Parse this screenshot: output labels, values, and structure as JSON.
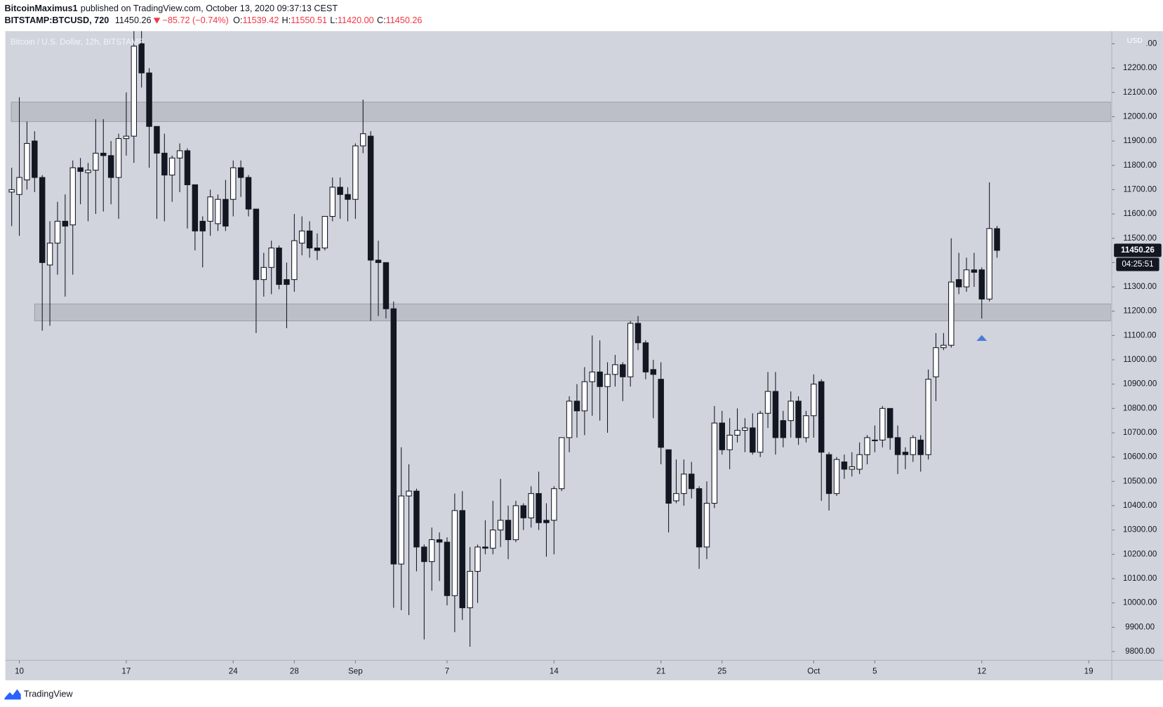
{
  "chart_data": {
    "type": "candlestick",
    "title": "Bitcoin / U.S. Dollar, 12h, BITSTAMP",
    "header": {
      "author": "BitcoinMaximus1",
      "published": "published on TradingView.com, October 13, 2020 09:37:13 CEST",
      "symbol": "BITSTAMP:BTCUSD, 720",
      "last": "11450.26",
      "change": "−85.72 (−0.74%)",
      "ohlc": [
        {
          "label": "O:",
          "value": "11539.42"
        },
        {
          "label": "H:",
          "value": "11550.51"
        },
        {
          "label": "L:",
          "value": "11420.00"
        },
        {
          "label": "C:",
          "value": "11450.26"
        }
      ]
    },
    "y_unit": "USD",
    "x": [
      9.5,
      10,
      10.5,
      11,
      11.5,
      12,
      12.5,
      13,
      13.5,
      14,
      14.5,
      15,
      15.5,
      16,
      16.5,
      17,
      17.5,
      18,
      18.5,
      19,
      19.5,
      20,
      20.5,
      21,
      21.5,
      22,
      22.5,
      23,
      23.5,
      24,
      24.5,
      25,
      25.5,
      26,
      26.5,
      27,
      27.5,
      28,
      28.5,
      29,
      29.5,
      30,
      30.5,
      31,
      31.5,
      32,
      32.5,
      33,
      33.5,
      34,
      34.5,
      35,
      35.5,
      36,
      36.5,
      37,
      37.5,
      38,
      38.5,
      39,
      39.5,
      40,
      40.5,
      41,
      41.5,
      42,
      42.5,
      43,
      43.5,
      44,
      44.5,
      45,
      45.5,
      46,
      46.5,
      47,
      47.5,
      48,
      48.5,
      49,
      49.5,
      50,
      50.5,
      51,
      51.5,
      52,
      52.5,
      53,
      53.5,
      54,
      54.5,
      55,
      55.5,
      56,
      56.5,
      57,
      57.5,
      58,
      58.5,
      59,
      59.5,
      60,
      60.5,
      61,
      61.5,
      62,
      62.5,
      63,
      63.5,
      64,
      64.5,
      65,
      65.5,
      66,
      66.5,
      67,
      67.5,
      68,
      68.5,
      69,
      69.5,
      70,
      70.5,
      71,
      71.5,
      72,
      72.5,
      73,
      73.5,
      74
    ],
    "open": [
      11690,
      11680,
      11740,
      11900,
      11750,
      11390,
      11480,
      11570,
      11555,
      11790,
      11770,
      11780,
      11850,
      11840,
      11750,
      11910,
      11920,
      12300,
      12180,
      11960,
      11850,
      11760,
      11830,
      11860,
      11720,
      11570,
      11570,
      11560,
      11660,
      11660,
      11790,
      11750,
      11620,
      11330,
      11380,
      11460,
      11330,
      11330,
      11480,
      11530,
      11460,
      11460,
      11590,
      11710,
      11680,
      11660,
      11880,
      11920,
      11410,
      11400,
      11210,
      10160,
      10440,
      10460,
      10230,
      10170,
      10260,
      10250,
      10030,
      10380,
      9980,
      10130,
      10230,
      10225,
      10300,
      10340,
      10260,
      10400,
      10350,
      10450,
      10340,
      10340,
      10470,
      10680,
      10830,
      10790,
      10910,
      10950,
      10890,
      10940,
      10980,
      10930,
      11150,
      11070,
      10960,
      10920,
      10630,
      10420,
      10450,
      10530,
      10470,
      10230,
      10410,
      10740,
      10630,
      10690,
      10710,
      10720,
      10620,
      10780,
      10870,
      10750,
      10750,
      10830,
      10680,
      10770,
      10910,
      10610,
      10450,
      10580,
      10550,
      10550,
      10610,
      10670,
      10670,
      10800,
      10680,
      10620,
      10610,
      10670,
      10610,
      10930,
      11050,
      11060,
      11330,
      11300,
      11370,
      11370,
      11250,
      11539.42
    ],
    "high": [
      11790,
      12080,
      11980,
      11940,
      11760,
      11570,
      11650,
      11680,
      11820,
      11830,
      11810,
      11990,
      11990,
      11900,
      11930,
      12100,
      12390,
      12400,
      12200,
      11960,
      11930,
      11840,
      11890,
      11870,
      11720,
      11590,
      11700,
      11680,
      11740,
      11820,
      11820,
      11760,
      11620,
      11440,
      11490,
      11470,
      11400,
      11600,
      11590,
      11570,
      11520,
      11590,
      11750,
      11750,
      11710,
      11890,
      12070,
      11940,
      11490,
      11400,
      11240,
      10640,
      10570,
      10470,
      10240,
      10310,
      10290,
      10270,
      10450,
      10460,
      10230,
      10240,
      10340,
      10420,
      10510,
      10400,
      10420,
      10410,
      10480,
      10540,
      10410,
      10480,
      10680,
      10850,
      10900,
      10970,
      11100,
      11080,
      10990,
      11020,
      10990,
      11160,
      11180,
      11080,
      11000,
      10990,
      10630,
      10590,
      10590,
      10580,
      10480,
      10500,
      10810,
      10790,
      10760,
      10800,
      10760,
      10780,
      10790,
      10950,
      10950,
      10790,
      10870,
      10850,
      10790,
      10940,
      10920,
      10620,
      10600,
      10610,
      10620,
      10660,
      10690,
      10730,
      10810,
      10800,
      10730,
      10640,
      10690,
      10690,
      10960,
      11110,
      11110,
      11500,
      11440,
      11420,
      11440,
      11380,
      11730,
      11550.51
    ],
    "low": [
      11550,
      11510,
      11700,
      11690,
      11120,
      11140,
      11350,
      11260,
      11350,
      11640,
      11570,
      11600,
      11610,
      11640,
      11580,
      11840,
      11810,
      12120,
      11790,
      11580,
      11570,
      11650,
      11690,
      11540,
      11450,
      11380,
      11510,
      11530,
      11530,
      11590,
      11670,
      11590,
      11110,
      11260,
      11270,
      11290,
      11130,
      11280,
      11430,
      11420,
      11410,
      11450,
      11570,
      11580,
      11570,
      11580,
      11850,
      11160,
      11180,
      11170,
      9980,
      9970,
      9950,
      10130,
      9850,
      10050,
      10090,
      9990,
      9880,
      9930,
      9820,
      10000,
      10200,
      10200,
      10230,
      10180,
      10250,
      10300,
      10310,
      10300,
      10190,
      10200,
      10460,
      10620,
      10680,
      10690,
      10770,
      10750,
      10700,
      10890,
      10830,
      10890,
      11040,
      10920,
      10760,
      10570,
      10290,
      10410,
      10400,
      10430,
      10140,
      10180,
      10390,
      10610,
      10550,
      10660,
      10620,
      10610,
      10600,
      10720,
      10610,
      10640,
      10680,
      10650,
      10660,
      10680,
      10420,
      10380,
      10440,
      10510,
      10520,
      10530,
      10570,
      10620,
      10640,
      10630,
      10530,
      10550,
      10580,
      10540,
      10590,
      10830,
      11040,
      11050,
      11270,
      11280,
      11300,
      11170,
      11240,
      11420
    ],
    "close": [
      11700,
      11750,
      11890,
      11750,
      11400,
      11480,
      11570,
      11550,
      11790,
      11775,
      11780,
      11850,
      11840,
      11750,
      11910,
      11920,
      12290,
      12180,
      11960,
      11850,
      11760,
      11830,
      11860,
      11720,
      11530,
      11530,
      11670,
      11660,
      11550,
      11790,
      11750,
      11620,
      11330,
      11380,
      11460,
      11310,
      11310,
      11490,
      11530,
      11460,
      11450,
      11590,
      11710,
      11680,
      11660,
      11880,
      11930,
      11410,
      11400,
      11210,
      10160,
      10440,
      10460,
      10230,
      10170,
      10260,
      10250,
      10030,
      10380,
      9980,
      10130,
      10230,
      10225,
      10300,
      10340,
      10260,
      10400,
      10350,
      10450,
      10330,
      10330,
      10470,
      10680,
      10830,
      10790,
      10910,
      10950,
      10890,
      10940,
      10980,
      10930,
      11150,
      11070,
      10950,
      10940,
      10640,
      10410,
      10450,
      10530,
      10470,
      10230,
      10410,
      10740,
      10630,
      10690,
      10710,
      10720,
      10620,
      10780,
      10870,
      10680,
      10680,
      10830,
      10680,
      10770,
      10900,
      10620,
      10450,
      10590,
      10550,
      10560,
      10610,
      10680,
      10670,
      10800,
      10680,
      10610,
      10610,
      10680,
      10610,
      10920,
      11050,
      11060,
      11320,
      11300,
      11370,
      11360,
      11250,
      11540,
      11450.26
    ],
    "up_color": "#ffffff",
    "down_color": "#131722",
    "xlim": [
      9.08,
      81.46
    ],
    "xticks": [
      10,
      17,
      24,
      28,
      {
        "value": 32,
        "label": "Sep"
      },
      {
        "value": 38,
        "label": "7"
      },
      {
        "value": 45,
        "label": "14"
      },
      {
        "value": 52,
        "label": "21"
      },
      {
        "value": 56,
        "label": "25"
      },
      {
        "value": 62,
        "label": "Oct"
      },
      {
        "value": 66,
        "label": "5"
      },
      {
        "value": 73,
        "label": "12"
      },
      {
        "value": 80,
        "label": "19"
      }
    ],
    "ylim": [
      9767,
      12352
    ],
    "yticks": [
      {
        "value": 9800,
        "label": "9800.00"
      },
      {
        "value": 9900,
        "label": "9900.00"
      },
      {
        "value": 10000,
        "label": "10000.00"
      },
      {
        "value": 10100,
        "label": "10100.00"
      },
      {
        "value": 10200,
        "label": "10200.00"
      },
      {
        "value": 10300,
        "label": "10300.00"
      },
      {
        "value": 10400,
        "label": "10400.00"
      },
      {
        "value": 10500,
        "label": "10500.00"
      },
      {
        "value": 10600,
        "label": "10600.00"
      },
      {
        "value": 10700,
        "label": "10700.00"
      },
      {
        "value": 10800,
        "label": "10800.00"
      },
      {
        "value": 10900,
        "label": "10900.00"
      },
      {
        "value": 11000,
        "label": "11000.00"
      },
      {
        "value": 11100,
        "label": "11100.00"
      },
      {
        "value": 11200,
        "label": "11200.00"
      },
      {
        "value": 11300,
        "label": "11300.00"
      },
      {
        "value": 11400,
        "label": "11400.00"
      },
      {
        "value": 11500,
        "label": "11500.00"
      },
      {
        "value": 11600,
        "label": "11600.00"
      },
      {
        "value": 11700,
        "label": "11700.00"
      },
      {
        "value": 11800,
        "label": "11800.00"
      },
      {
        "value": 11900,
        "label": "11900.00"
      },
      {
        "value": 12000,
        "label": "12000.00"
      },
      {
        "value": 12100,
        "label": "12100.00"
      },
      {
        "value": 12200,
        "label": "12200.00"
      },
      {
        "value": 12300,
        "label": "12300.00"
      }
    ],
    "last_price": 11450.26,
    "countdown": "04:25:51",
    "zones": [
      {
        "xlim": [
          9.47,
          81.46
        ],
        "ylim": [
          11980,
          12060
        ]
      },
      {
        "xlim": [
          11.0,
          81.46
        ],
        "ylim": [
          11160,
          11230
        ]
      }
    ],
    "marker": {
      "x": 73,
      "value": 11090,
      "color": "#4a7bd9"
    }
  },
  "brand": "TradingView"
}
